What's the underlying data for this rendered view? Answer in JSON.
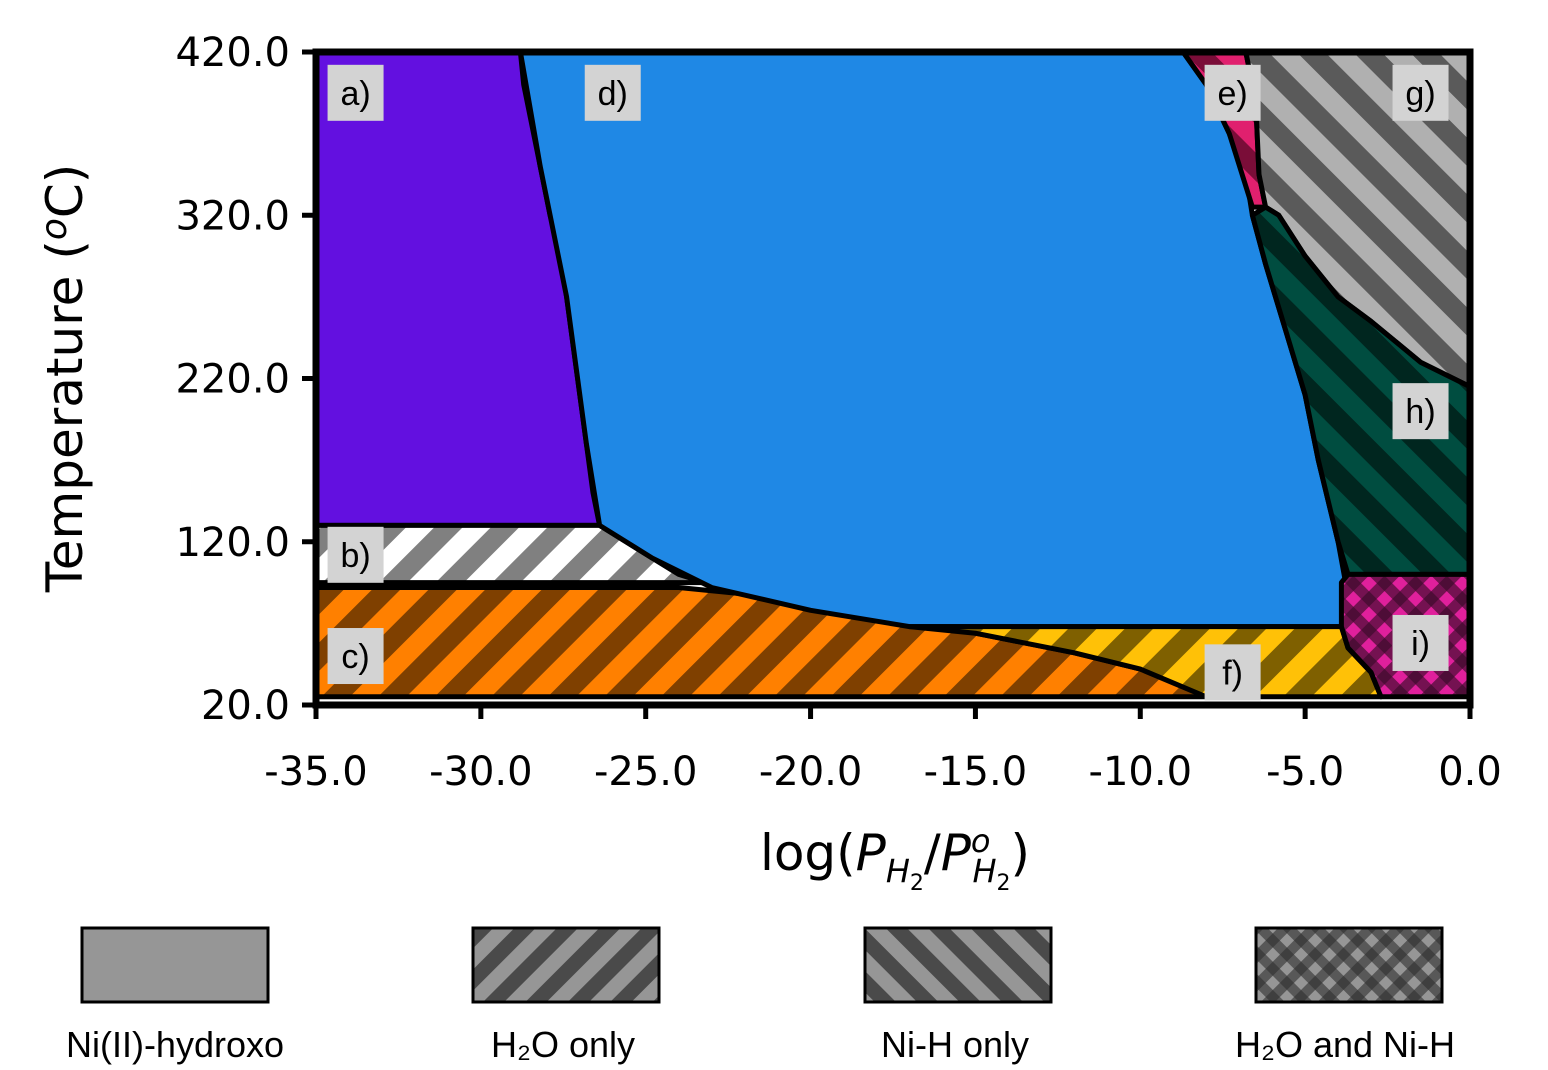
{
  "chart_data": {
    "type": "area",
    "xlabel": "log(P_H2/P°_H2)",
    "ylabel": "Temperature (°C)",
    "xlim": [
      -35.0,
      0.0
    ],
    "ylim": [
      20.0,
      420.0
    ],
    "x_ticks": [
      "-35.0",
      "-30.0",
      "-25.0",
      "-20.0",
      "-15.0",
      "-10.0",
      "-5.0",
      "0.0"
    ],
    "y_ticks": [
      "20.0",
      "120.0",
      "220.0",
      "320.0",
      "420.0"
    ],
    "grid": false,
    "colors": {
      "a": "#6310E0",
      "b_stripe": "#808080",
      "c": "#FF8000",
      "c_stripe": "#7F4000",
      "d": "#1F88E5",
      "e": "#E0206E",
      "e_stripe": "#7A0D38",
      "f": "#FFC107",
      "f_stripe": "#7F6000",
      "g": "#B0B0B0",
      "g_stripe": "#5A5A5A",
      "h": "#004D40",
      "h_stripe": "#00261F",
      "i": "#E0209C",
      "i_check": "#3A0A2A",
      "legend_fill": "#969696",
      "legend_dark": "#4A4A4A"
    },
    "regions": [
      {
        "id": "a",
        "label": "a)",
        "fill": "solid",
        "boundary": [
          [
            -35,
            420
          ],
          [
            -28.8,
            420
          ],
          [
            -28.7,
            400
          ],
          [
            -28.5,
            380
          ],
          [
            -28.2,
            350
          ],
          [
            -27.9,
            320
          ],
          [
            -27.6,
            300
          ],
          [
            -27.4,
            270
          ],
          [
            -27.2,
            240
          ],
          [
            -27.0,
            210
          ],
          [
            -26.8,
            180
          ],
          [
            -26.6,
            150
          ],
          [
            -26.4,
            130
          ],
          [
            -35,
            130
          ]
        ]
      },
      {
        "id": "b",
        "label": "b)",
        "fill": "H2O only",
        "boundary": [
          [
            -35,
            130
          ],
          [
            -26.4,
            130
          ],
          [
            -25.6,
            120
          ],
          [
            -24.8,
            110
          ],
          [
            -24.0,
            100
          ],
          [
            -23.2,
            95
          ],
          [
            -35,
            95
          ]
        ]
      },
      {
        "id": "c",
        "label": "c)",
        "fill": "H2O only",
        "boundary": [
          [
            -35,
            92
          ],
          [
            -24.0,
            92
          ],
          [
            -21.0,
            86
          ],
          [
            -19.0,
            80
          ],
          [
            -17.0,
            72
          ],
          [
            -15.0,
            64
          ],
          [
            -12.0,
            52
          ],
          [
            -10.0,
            42
          ],
          [
            -8.0,
            32
          ],
          [
            -7.6,
            25
          ],
          [
            -35,
            25
          ]
        ]
      },
      {
        "id": "d",
        "label": "d)",
        "fill": "solid",
        "boundary": [
          [
            -28.8,
            420
          ],
          [
            -8.7,
            420
          ],
          [
            -8.0,
            400
          ],
          [
            -7.3,
            370
          ],
          [
            -6.8,
            345
          ],
          [
            -6.6,
            320
          ],
          [
            -6.2,
            290
          ],
          [
            -5.6,
            250
          ],
          [
            -5.0,
            210
          ],
          [
            -4.6,
            170
          ],
          [
            -4.0,
            120
          ],
          [
            -3.8,
            98
          ],
          [
            -3.9,
            68
          ],
          [
            -17.0,
            68
          ],
          [
            -20.0,
            78
          ],
          [
            -23.0,
            92
          ],
          [
            -24.8,
            110
          ],
          [
            -26.4,
            130
          ],
          [
            -26.8,
            180
          ],
          [
            -27.4,
            270
          ],
          [
            -28.2,
            350
          ]
        ]
      },
      {
        "id": "e",
        "label": "e)",
        "fill": "Ni-H only",
        "boundary": [
          [
            -8.7,
            420
          ],
          [
            -6.8,
            420
          ],
          [
            -6.5,
            390
          ],
          [
            -6.4,
            345
          ],
          [
            -6.2,
            325
          ],
          [
            -6.6,
            325
          ],
          [
            -7.3,
            370
          ],
          [
            -8.0,
            400
          ]
        ]
      },
      {
        "id": "f",
        "label": "f)",
        "fill": "H2O and Ni-H",
        "boundary": [
          [
            -17.0,
            68
          ],
          [
            -3.9,
            68
          ],
          [
            -3.7,
            55
          ],
          [
            -3.0,
            40
          ],
          [
            -2.7,
            25
          ],
          [
            -8.0,
            25
          ],
          [
            -10.0,
            42
          ],
          [
            -12.0,
            52
          ],
          [
            -15.0,
            64
          ]
        ]
      },
      {
        "id": "g",
        "label": "g)",
        "fill": "Ni-H only",
        "boundary": [
          [
            -6.8,
            420
          ],
          [
            0,
            420
          ],
          [
            0,
            215
          ],
          [
            -1.5,
            230
          ],
          [
            -3.0,
            255
          ],
          [
            -4.0,
            270
          ],
          [
            -5.0,
            295
          ],
          [
            -5.8,
            320
          ],
          [
            -6.2,
            325
          ],
          [
            -6.4,
            345
          ],
          [
            -6.5,
            390
          ]
        ]
      },
      {
        "id": "h",
        "label": "h)",
        "fill": "Ni-H only",
        "boundary": [
          [
            -6.2,
            325
          ],
          [
            -5.8,
            320
          ],
          [
            -5.0,
            295
          ],
          [
            -4.0,
            270
          ],
          [
            -3.0,
            255
          ],
          [
            -1.5,
            230
          ],
          [
            0,
            215
          ],
          [
            0,
            100
          ],
          [
            -3.7,
            100
          ],
          [
            -4.0,
            120
          ],
          [
            -4.6,
            170
          ],
          [
            -5.0,
            210
          ],
          [
            -5.6,
            250
          ],
          [
            -6.2,
            290
          ],
          [
            -6.6,
            320
          ]
        ]
      },
      {
        "id": "i",
        "label": "i)",
        "fill": "H2O and Ni-H",
        "boundary": [
          [
            -3.7,
            100
          ],
          [
            0,
            100
          ],
          [
            0,
            25
          ],
          [
            -2.7,
            25
          ],
          [
            -3.0,
            40
          ],
          [
            -3.7,
            55
          ],
          [
            -3.9,
            68
          ],
          [
            -3.9,
            95
          ]
        ]
      }
    ],
    "region_labels": [
      {
        "id": "a",
        "text": "a)",
        "x": -33.8,
        "y": 395
      },
      {
        "id": "b",
        "text": "b)",
        "x": -33.8,
        "y": 112
      },
      {
        "id": "c",
        "text": "c)",
        "x": -33.8,
        "y": 50
      },
      {
        "id": "d",
        "text": "d)",
        "x": -26.0,
        "y": 395
      },
      {
        "id": "e",
        "text": "e)",
        "x": -7.2,
        "y": 395
      },
      {
        "id": "f",
        "text": "f)",
        "x": -7.2,
        "y": 40
      },
      {
        "id": "g",
        "text": "g)",
        "x": -1.5,
        "y": 395
      },
      {
        "id": "h",
        "text": "h)",
        "x": -1.5,
        "y": 200
      },
      {
        "id": "i",
        "text": "i)",
        "x": -1.5,
        "y": 58
      }
    ]
  },
  "legend": {
    "items": [
      {
        "label": "Ni(II)-hydroxo",
        "pattern": "solid"
      },
      {
        "label": "H₂O only",
        "pattern": "stripe-up"
      },
      {
        "label": "Ni-H only",
        "pattern": "stripe-down"
      },
      {
        "label": "H₂O and Ni-H",
        "pattern": "check"
      }
    ]
  }
}
